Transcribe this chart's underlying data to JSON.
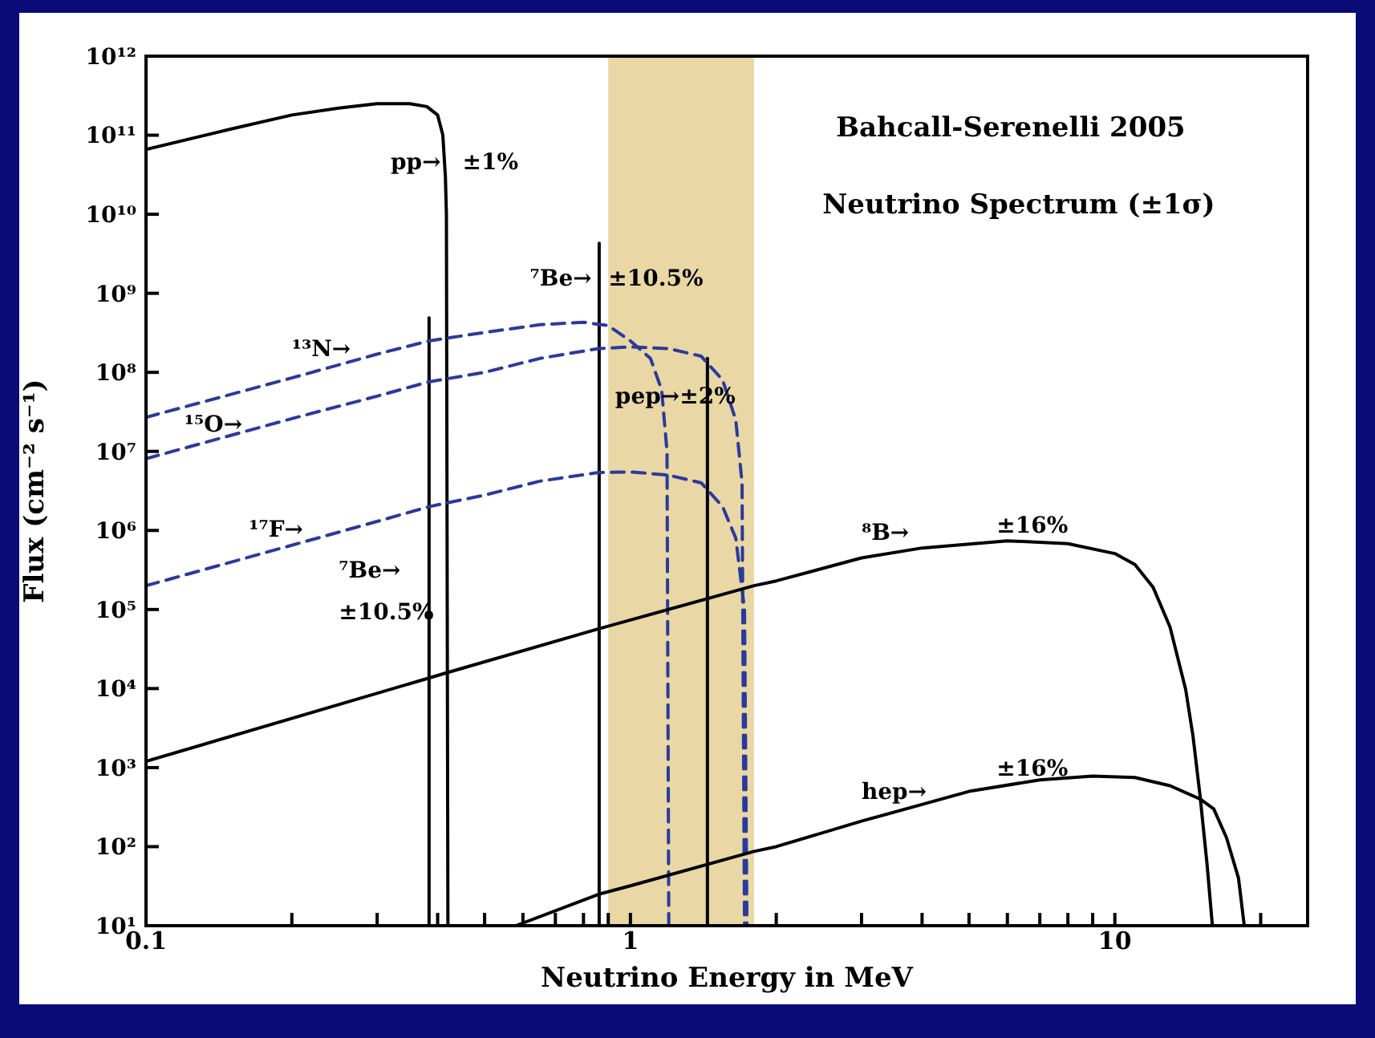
{
  "chart_data": {
    "type": "line",
    "title": "Bahcall-Serenelli 2005",
    "subtitle": "Neutrino Spectrum (±1σ)",
    "xlabel": "Neutrino Energy in MeV",
    "ylabel": "Flux (cm⁻² s⁻¹)",
    "log": "xy",
    "marker": "none",
    "xlim": [
      0.1,
      25
    ],
    "xticks": [
      0.1,
      {
        "value": 0.2,
        "label": null
      },
      {
        "value": 0.3,
        "label": null
      },
      {
        "value": 0.4,
        "label": null
      },
      {
        "value": 0.5,
        "label": null
      },
      {
        "value": 0.6,
        "label": null
      },
      {
        "value": 0.7,
        "label": null
      },
      {
        "value": 0.8,
        "label": null
      },
      {
        "value": 0.9,
        "label": null
      },
      1,
      {
        "value": 2,
        "label": null
      },
      {
        "value": 3,
        "label": null
      },
      {
        "value": 4,
        "label": null
      },
      {
        "value": 5,
        "label": null
      },
      {
        "value": 6,
        "label": null
      },
      {
        "value": 7,
        "label": null
      },
      {
        "value": 8,
        "label": null
      },
      {
        "value": 9,
        "label": null
      },
      10,
      {
        "value": 20,
        "label": null
      }
    ],
    "ylim": [
      10,
      1000000000000
    ],
    "yticks": [
      {
        "value": 10,
        "label": "10¹"
      },
      {
        "value": 100,
        "label": "10²"
      },
      {
        "value": 1000,
        "label": "10³"
      },
      {
        "value": 10000,
        "label": "10⁴"
      },
      {
        "value": 100000,
        "label": "10⁵"
      },
      {
        "value": 1000000,
        "label": "10⁶"
      },
      {
        "value": 10000000,
        "label": "10⁷"
      },
      {
        "value": 100000000,
        "label": "10⁸"
      },
      {
        "value": 1000000000,
        "label": "10⁹"
      },
      {
        "value": 10000000000,
        "label": "10¹⁰"
      },
      {
        "value": 100000000000,
        "label": "10¹¹"
      },
      {
        "value": 1000000000000,
        "label": "10¹²"
      }
    ],
    "bands": [
      {
        "axis": "x",
        "from": 0.9,
        "to": 1.8,
        "color": "#e9d7a5"
      }
    ],
    "series": [
      {
        "color": "#000000",
        "line_style": "solid",
        "x": [
          0.1,
          0.15,
          0.2,
          0.25,
          0.3,
          0.35,
          0.38,
          0.4,
          0.41,
          0.415,
          0.417,
          0.42
        ],
        "values": [
          66000000000,
          120000000000,
          180000000000,
          220000000000,
          250000000000,
          250000000000,
          230000000000,
          180000000000,
          100000000000,
          30000000000,
          10000000000,
          10
        ]
      },
      {
        "color": "#000000",
        "line_style": "solid",
        "x": [
          0.384,
          0.384
        ],
        "values": [
          10,
          490000000
        ]
      },
      {
        "color": "#000000",
        "line_style": "solid",
        "x": [
          0.862,
          0.862
        ],
        "values": [
          10,
          4300000000
        ]
      },
      {
        "color": "#000000",
        "line_style": "solid",
        "x": [
          1.442,
          1.442
        ],
        "values": [
          10,
          150000000
        ]
      },
      {
        "color": "#2a3a9c",
        "line_style": "dashed",
        "x": [
          0.1,
          0.2,
          0.3,
          0.384,
          0.5,
          0.65,
          0.8,
          0.9,
          1.0,
          1.1,
          1.16,
          1.19,
          1.2
        ],
        "values": [
          27000000,
          85000000,
          170000000,
          250000000,
          320000000,
          400000000,
          430000000,
          390000000,
          250000000,
          150000000,
          60000000,
          10000000,
          10
        ]
      },
      {
        "color": "#2a3a9c",
        "line_style": "dashed",
        "x": [
          0.1,
          0.2,
          0.3,
          0.384,
          0.5,
          0.65,
          0.86,
          1.0,
          1.2,
          1.4,
          1.55,
          1.65,
          1.7,
          1.72
        ],
        "values": [
          8100000,
          26000000,
          50000000,
          76000000,
          100000000,
          150000000,
          200000000,
          210000000,
          200000000,
          160000000,
          80000000,
          25000000,
          4000000,
          10
        ]
      },
      {
        "color": "#2a3a9c",
        "line_style": "dashed",
        "x": [
          0.1,
          0.2,
          0.3,
          0.384,
          0.5,
          0.65,
          0.86,
          1.0,
          1.2,
          1.4,
          1.55,
          1.65,
          1.72,
          1.74
        ],
        "values": [
          200000,
          650000,
          1300000,
          2000000,
          2800000,
          4200000,
          5400000,
          5500000,
          5000000,
          4000000,
          2000000,
          800000,
          100000,
          10
        ]
      },
      {
        "color": "#000000",
        "line_style": "solid",
        "x": [
          0.1,
          0.42,
          0.86,
          1.8,
          2,
          3,
          4,
          6,
          8,
          10,
          11,
          12,
          13,
          14,
          14.5,
          15,
          15.5,
          15.9
        ],
        "values": [
          1200,
          16000,
          57000,
          200000,
          230000,
          450000,
          600000,
          740000,
          680000,
          510000,
          370000,
          190000,
          60000,
          9800,
          2500,
          430,
          60,
          10
        ]
      },
      {
        "color": "#000000",
        "line_style": "solid",
        "x": [
          0.58,
          0.86,
          1.0,
          1.8,
          2,
          3,
          5,
          7,
          9,
          11,
          13,
          15,
          16,
          17,
          18,
          18.5
        ],
        "values": [
          10,
          25,
          32,
          87,
          100,
          210,
          500,
          700,
          780,
          750,
          590,
          400,
          300,
          130,
          40,
          10
        ]
      }
    ],
    "annotations": [
      "pp→",
      "±1%",
      "⁷Be→",
      "±10.5%",
      "¹³N→",
      "¹⁵O→",
      "¹⁷F→",
      "⁷Be→",
      "±10.5%",
      "pep→±2%",
      "⁸B→",
      "±16%",
      "hep→",
      "±16%"
    ]
  }
}
